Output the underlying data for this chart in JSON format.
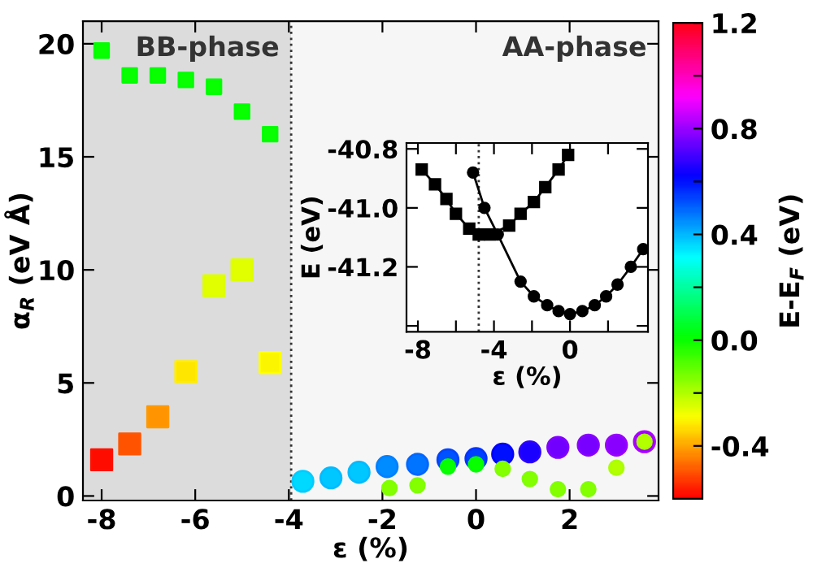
{
  "chart_data": [
    {
      "type": "scatter",
      "xlabel": "ε (%)",
      "ylabel": "α$_{R}$ (eV Å)",
      "clabel": "E-E$_{F}$ (eV)",
      "xlim": [
        -8.4,
        3.9
      ],
      "ylim": [
        -0.2,
        21
      ],
      "xticks": [
        -8,
        -6,
        -4,
        -2,
        0,
        2
      ],
      "yticks": [
        0,
        5,
        10,
        15,
        20
      ],
      "clim": [
        -0.6,
        1.2
      ],
      "cticks": [
        -0.4,
        {
          "value": -0.2,
          "label": null
        },
        {
          "value": 0.0,
          "label": "0.0"
        },
        {
          "value": 0.2,
          "label": null
        },
        0.4,
        {
          "value": 0.6,
          "label": null
        },
        0.8,
        {
          "value": 1.0,
          "label": null
        },
        1.2
      ],
      "bands": [
        {
          "axis": "x",
          "from": -8.4,
          "to": -3.95,
          "label": "BB-phase",
          "color": "#dcdcdc"
        },
        {
          "axis": "x",
          "from": -3.95,
          "to": 3.9,
          "label": "AA-phase",
          "color": "#f6f6f6"
        }
      ],
      "ref_lines": [
        {
          "axis": "x",
          "value": -3.95,
          "line_style": "dotted",
          "color": "#333333"
        }
      ],
      "series": [
        {
          "marker": "square",
          "x": [
            -8.0,
            -7.4,
            -6.8,
            -6.2,
            -5.6,
            -5.0,
            -4.4
          ],
          "values": [
            19.7,
            18.6,
            18.6,
            18.4,
            18.1,
            17.0,
            16.0
          ],
          "cvalues": [
            0.0,
            0.0,
            0.0,
            0.0,
            0.0,
            0.0,
            0.0
          ],
          "colors": [
            "#00ff00",
            "#00ff00",
            "#00ff00",
            "#00ff00",
            "#00ff00",
            "#00ff00",
            "#00ff00"
          ]
        },
        {
          "marker": "square",
          "x": [
            -8.0,
            -7.4,
            -6.8,
            -6.2,
            -5.6,
            -5.0,
            -4.4
          ],
          "values": [
            1.6,
            2.3,
            3.5,
            5.5,
            9.3,
            10.0,
            5.9
          ],
          "cvalues": [
            -0.58,
            -0.5,
            -0.42,
            -0.32,
            -0.26,
            -0.26,
            -0.3
          ],
          "colors": [
            "#ff1100",
            "#ff5500",
            "#ff9900",
            "#ffee00",
            "#ddff00",
            "#ddff00",
            "#ffff00"
          ]
        },
        {
          "marker": "circle",
          "x": [
            -3.7,
            -3.1,
            -2.5,
            -1.9,
            -1.25,
            -0.6,
            0.0,
            0.57,
            1.15,
            1.75,
            2.4,
            3.0,
            3.6
          ],
          "values": [
            0.65,
            0.8,
            1.05,
            1.3,
            1.4,
            1.6,
            1.65,
            1.85,
            1.95,
            2.15,
            2.25,
            2.25,
            2.4
          ],
          "cvalues": [
            0.36,
            0.38,
            0.38,
            0.45,
            0.48,
            0.52,
            0.54,
            0.6,
            0.65,
            0.75,
            0.76,
            0.78,
            0.8
          ],
          "colors": [
            "#00ccff",
            "#00bbff",
            "#00bbff",
            "#0080ff",
            "#0066ff",
            "#0044ff",
            "#0033ff",
            "#0000ff",
            "#2a00ff",
            "#8000ff",
            "#8800ff",
            "#9900ff",
            "#aa00ff"
          ]
        },
        {
          "marker": "circle",
          "x": [
            -1.85,
            -1.25,
            -0.6,
            0.0,
            0.57,
            1.15,
            1.75,
            2.4,
            3.0,
            3.6
          ],
          "values": [
            0.35,
            0.47,
            1.3,
            1.4,
            1.2,
            0.75,
            0.3,
            0.3,
            1.25,
            2.4
          ],
          "cvalues": [
            -0.15,
            -0.15,
            0.0,
            0.0,
            -0.15,
            -0.15,
            -0.15,
            -0.15,
            -0.2,
            -0.2
          ],
          "colors": [
            "#80ff00",
            "#80ff00",
            "#00ff00",
            "#00ff00",
            "#80ff00",
            "#80ff00",
            "#80ff00",
            "#80ff00",
            "#aaff00",
            "#aaff00"
          ]
        }
      ]
    },
    {
      "type": "line",
      "xlabel": "ε (%)",
      "ylabel": "E (eV)",
      "xlim": [
        -8.6,
        4.1
      ],
      "ylim": [
        -41.42,
        -40.78
      ],
      "xticks": [
        -8,
        {
          "value": -6,
          "label": null
        },
        -4,
        {
          "value": -2,
          "label": null
        },
        0,
        {
          "value": 2,
          "label": null
        }
      ],
      "yticks": [
        -40.8,
        {
          "value": -41.0,
          "label": "-41.0"
        },
        -41.2,
        {
          "value": -41.4,
          "label": null
        }
      ],
      "ref_lines": [
        {
          "axis": "x",
          "value": -4.8,
          "line_style": "dotted",
          "color": "#333333"
        }
      ],
      "series": [
        {
          "color": "#000000",
          "marker": "square",
          "x": [
            -7.8,
            -7.1,
            -6.5,
            -6.0,
            -5.3,
            -4.8,
            -4.2,
            -3.2,
            -2.6,
            -1.9,
            -1.3,
            -0.6,
            -0.1
          ],
          "values": [
            -40.87,
            -40.92,
            -40.97,
            -41.02,
            -41.07,
            -41.09,
            -41.09,
            -41.06,
            -41.02,
            -40.98,
            -40.93,
            -40.87,
            -40.82
          ]
        },
        {
          "color": "#000000",
          "marker": "circle",
          "x": [
            -5.1,
            -4.5,
            -3.8,
            -2.6,
            -1.9,
            -1.2,
            -0.6,
            0.0,
            0.65,
            1.3,
            1.9,
            2.5,
            3.2,
            3.85
          ],
          "values": [
            -40.88,
            -41.0,
            -41.09,
            -41.25,
            -41.3,
            -41.33,
            -41.35,
            -41.36,
            -41.35,
            -41.33,
            -41.3,
            -41.26,
            -41.2,
            -41.14
          ]
        }
      ]
    }
  ]
}
